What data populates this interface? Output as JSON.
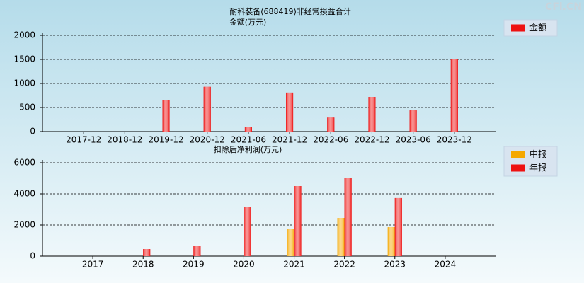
{
  "watermark": "CFi.CN",
  "chart_data": [
    {
      "type": "bar",
      "title": "耐科装备(688419)非经常损益合计",
      "subtitle": "金额(万元)",
      "categories": [
        "2017-12",
        "2018-12",
        "2019-12",
        "2020-12",
        "2021-06",
        "2021-12",
        "2022-06",
        "2022-12",
        "2023-06",
        "2023-12"
      ],
      "series": [
        {
          "name": "金额",
          "color": "#ee1111",
          "values": [
            null,
            null,
            660,
            930,
            90,
            810,
            290,
            720,
            440,
            1510
          ]
        }
      ],
      "ylim": [
        0,
        2000
      ],
      "yticks": [
        0,
        500,
        1000,
        1500,
        2000
      ],
      "grid": true
    },
    {
      "type": "bar",
      "title": "扣除后净利润(万元)",
      "categories": [
        "2017",
        "2018",
        "2019",
        "2020",
        "2021",
        "2022",
        "2023",
        "2024"
      ],
      "series": [
        {
          "name": "中报",
          "color": "#f5a800",
          "values": [
            null,
            null,
            null,
            null,
            1770,
            2450,
            1860,
            null
          ]
        },
        {
          "name": "年报",
          "color": "#ee1111",
          "values": [
            null,
            450,
            680,
            3180,
            4500,
            5000,
            3730,
            null
          ]
        }
      ],
      "ylim": [
        0,
        6000
      ],
      "yticks": [
        0,
        2000,
        4000,
        6000
      ],
      "grid": true
    }
  ]
}
